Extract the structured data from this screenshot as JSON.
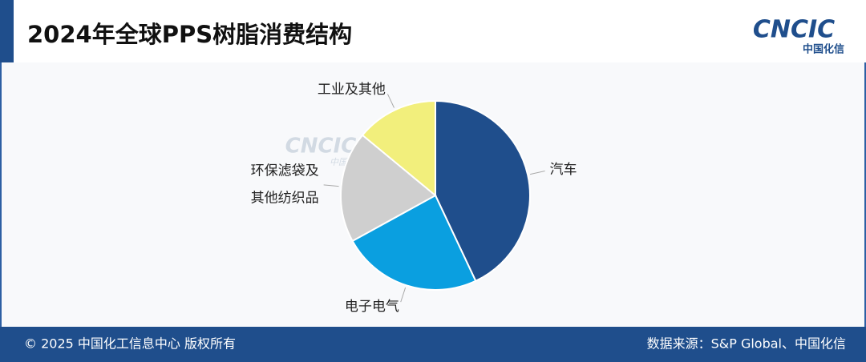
{
  "header": {
    "title": "2024年全球PPS树脂消费结构",
    "logo": "CNCIC",
    "logo_sub": "中国化信"
  },
  "watermark": {
    "logo": "CNCIC",
    "logo_sub": "中国化信"
  },
  "chart_data": {
    "type": "pie",
    "categories": [
      "汽车",
      "电子电气",
      "环保滤袋及\n其他纺织品",
      "工业及其他"
    ],
    "values": [
      43,
      24,
      19,
      14
    ],
    "colors": [
      "#1f4e8c",
      "#0a9fe0",
      "#cfcfcf",
      "#f2ef7c"
    ]
  },
  "footer": {
    "copyright": "© 2025 中国化工信息中心  版权所有",
    "source": "数据来源：S&P Global、中国化信"
  }
}
